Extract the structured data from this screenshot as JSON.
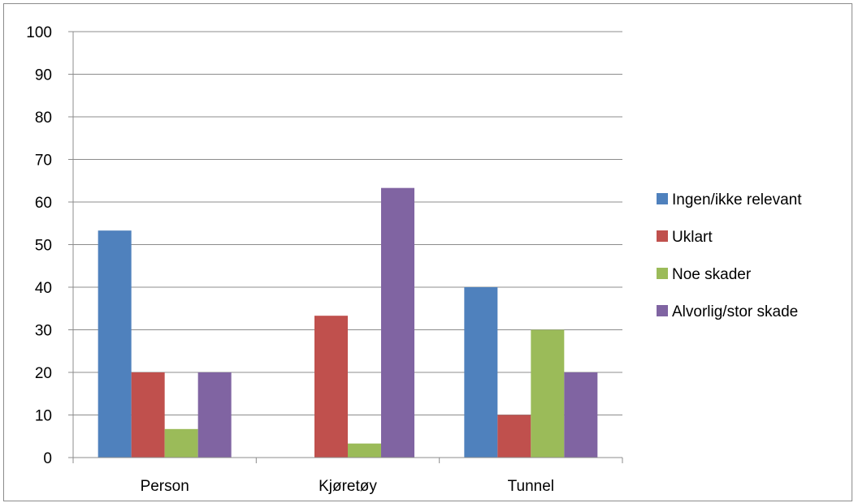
{
  "chart_data": {
    "type": "bar",
    "categories": [
      "Person",
      "Kjøretøy",
      "Tunnel"
    ],
    "series": [
      {
        "name": "Ingen/ikke relevant",
        "color": "#4f81bd",
        "values": [
          53.3,
          0,
          40
        ]
      },
      {
        "name": "Uklart",
        "color": "#c0504d",
        "values": [
          20,
          33.3,
          10
        ]
      },
      {
        "name": "Noe skader",
        "color": "#9bbb59",
        "values": [
          6.7,
          3.3,
          30
        ]
      },
      {
        "name": "Alvorlig/stor skade",
        "color": "#8064a2",
        "values": [
          20,
          63.3,
          20
        ]
      }
    ],
    "ylim": [
      0,
      100
    ],
    "yticks": [
      0,
      10,
      20,
      30,
      40,
      50,
      60,
      70,
      80,
      90,
      100
    ],
    "grid": true,
    "legend_position": "right",
    "title": "",
    "xlabel": "",
    "ylabel": ""
  }
}
